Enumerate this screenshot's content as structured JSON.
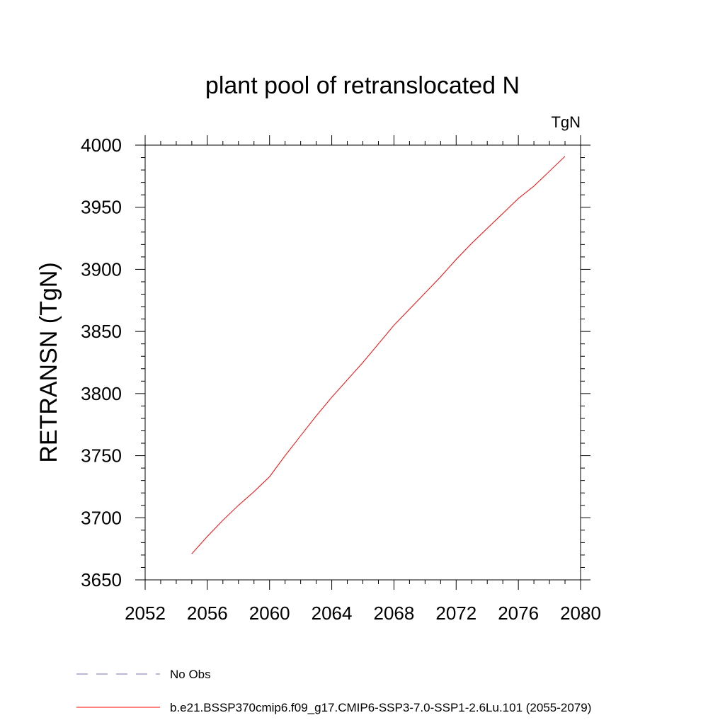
{
  "chart_data": {
    "type": "line",
    "title": "plant pool of retranslocated N",
    "units": "TgN",
    "ylabel": "RETRANSN  (TgN)",
    "xlabel": "",
    "xlim": [
      2052,
      2080
    ],
    "ylim": [
      3650,
      4000
    ],
    "x_ticks": [
      "2052",
      "2056",
      "2060",
      "2064",
      "2068",
      "2072",
      "2076",
      "2080"
    ],
    "y_ticks": [
      "3650",
      "3700",
      "3750",
      "3800",
      "3850",
      "3900",
      "3950",
      "4000"
    ],
    "grid": false,
    "legend_position": "bottom",
    "series": [
      {
        "name": "No Obs",
        "color": "#7b6fb5",
        "dash": "dashed",
        "x": [],
        "y": []
      },
      {
        "name": "b.e21.BSSP370cmip6.f09_g17.CMIP6-SSP3-7.0-SSP1-2.6Lu.101 (2055-2079)",
        "color": "#ff0000",
        "dash": "solid",
        "x": [
          2055,
          2056,
          2057,
          2058,
          2059,
          2060,
          2061,
          2062,
          2063,
          2064,
          2065,
          2066,
          2067,
          2068,
          2069,
          2070,
          2071,
          2072,
          2073,
          2074,
          2075,
          2076,
          2077,
          2078,
          2079
        ],
        "y": [
          3671,
          3685,
          3698,
          3710,
          3721,
          3733,
          3750,
          3766,
          3782,
          3797,
          3811,
          3825,
          3840,
          3855,
          3868,
          3881,
          3894,
          3908,
          3921,
          3933,
          3945,
          3957,
          3967,
          3979,
          3991
        ]
      }
    ]
  }
}
